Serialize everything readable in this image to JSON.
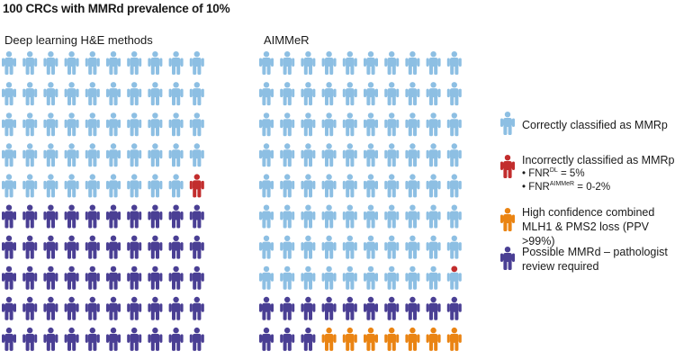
{
  "title": "100 CRCs with MMRd prevalence of 10%",
  "panels": [
    {
      "title": "Deep learning H&E methods"
    },
    {
      "title": "AIMMeR"
    }
  ],
  "colors": {
    "light_blue": "#8dbfe3",
    "red": "#c22d2d",
    "orange": "#ea8413",
    "purple": "#4a3f94"
  },
  "legend": {
    "correct_mmrp": "Correctly classified as MMRp",
    "incorrect_mmrp": "Incorrectly classified as MMRp",
    "fnr_dl_prefix": "• FNR",
    "fnr_dl_sup": "DL",
    "fnr_dl_value": " = 5%",
    "fnr_aimmer_prefix": "• FNR",
    "fnr_aimmer_sup": "AIMMeR",
    "fnr_aimmer_value": " = 0-2%",
    "high_conf_line1": "High confidence combined",
    "high_conf_line2": "MLH1 & PMS2 loss (PPV >99%)",
    "possible_line1": "Possible MMRd – pathologist",
    "possible_line2": "review required"
  }
}
